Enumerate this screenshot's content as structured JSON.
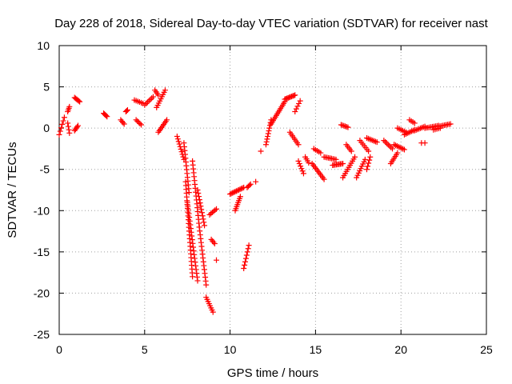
{
  "chart_data": {
    "type": "scatter",
    "title": "Day 228 of 2018, Sidereal Day-to-day VTEC variation (SDTVAR) for receiver nast",
    "xlabel": "GPS time / hours",
    "ylabel": "SDTVAR / TECUs",
    "xlim": [
      0,
      25
    ],
    "ylim": [
      -25,
      10
    ],
    "xticks": [
      "0",
      "5",
      "10",
      "15",
      "20",
      "25"
    ],
    "yticks": [
      "10",
      "5",
      "0",
      "-5",
      "-10",
      "-15",
      "-20",
      "-25"
    ],
    "grid": true,
    "marker": "+",
    "color": "#ff0000",
    "series": [
      {
        "name": "SDTVAR",
        "segments": [
          {
            "x": [
              0.0,
              0.3
            ],
            "y": [
              -0.8,
              1.3
            ],
            "n": 6
          },
          {
            "x": [
              0.5,
              0.6
            ],
            "y": [
              2.0,
              2.6
            ],
            "n": 4
          },
          {
            "x": [
              0.5,
              0.6
            ],
            "y": [
              0.6,
              -0.6
            ],
            "n": 4
          },
          {
            "x": [
              0.9,
              1.2
            ],
            "y": [
              3.7,
              3.2
            ],
            "n": 6
          },
          {
            "x": [
              0.9,
              1.1
            ],
            "y": [
              -0.3,
              0.3
            ],
            "n": 5
          },
          {
            "x": [
              2.6,
              2.8
            ],
            "y": [
              1.8,
              1.4
            ],
            "n": 5
          },
          {
            "x": [
              3.6,
              3.8
            ],
            "y": [
              1.0,
              0.5
            ],
            "n": 4
          },
          {
            "x": [
              3.9,
              4.0
            ],
            "y": [
              2.0,
              2.2
            ],
            "n": 3
          },
          {
            "x": [
              4.4,
              4.9
            ],
            "y": [
              3.4,
              3.0
            ],
            "n": 6
          },
          {
            "x": [
              4.5,
              4.8
            ],
            "y": [
              1.0,
              0.4
            ],
            "n": 5
          },
          {
            "x": [
              5.0,
              5.5
            ],
            "y": [
              2.8,
              3.8
            ],
            "n": 7
          },
          {
            "x": [
              5.6,
              5.8
            ],
            "y": [
              4.6,
              4.0
            ],
            "n": 4
          },
          {
            "x": [
              5.7,
              6.2
            ],
            "y": [
              2.5,
              4.6
            ],
            "n": 9
          },
          {
            "x": [
              5.8,
              6.3
            ],
            "y": [
              -0.5,
              1.0
            ],
            "n": 9
          },
          {
            "x": [
              6.9,
              7.3
            ],
            "y": [
              -1.0,
              -3.8
            ],
            "n": 10
          },
          {
            "x": [
              7.3,
              7.6
            ],
            "y": [
              -1.8,
              -7.8
            ],
            "n": 14
          },
          {
            "x": [
              7.4,
              7.8
            ],
            "y": [
              -6.5,
              -18.0
            ],
            "n": 26
          },
          {
            "x": [
              7.5,
              8.1
            ],
            "y": [
              -9.0,
              -18.5
            ],
            "n": 22
          },
          {
            "x": [
              7.8,
              8.2
            ],
            "y": [
              -4.0,
              -12.0
            ],
            "n": 18
          },
          {
            "x": [
              8.2,
              8.6
            ],
            "y": [
              -12.0,
              -19.0
            ],
            "n": 16
          },
          {
            "x": [
              8.1,
              8.5
            ],
            "y": [
              -7.5,
              -11.8
            ],
            "n": 12
          },
          {
            "x": [
              8.8,
              9.2
            ],
            "y": [
              -10.5,
              -9.8
            ],
            "n": 6
          },
          {
            "x": [
              8.6,
              9.0
            ],
            "y": [
              -20.5,
              -22.3
            ],
            "n": 8
          },
          {
            "x": [
              8.9,
              9.1
            ],
            "y": [
              -13.5,
              -14.0
            ],
            "n": 4
          },
          {
            "x": [
              9.2,
              9.3
            ],
            "y": [
              -16.0,
              -16.0
            ],
            "n": 1
          },
          {
            "x": [
              10.0,
              10.8
            ],
            "y": [
              -8.0,
              -7.2
            ],
            "n": 12
          },
          {
            "x": [
              10.3,
              10.6
            ],
            "y": [
              -10.0,
              -8.3
            ],
            "n": 8
          },
          {
            "x": [
              10.8,
              11.1
            ],
            "y": [
              -17.0,
              -14.2
            ],
            "n": 8
          },
          {
            "x": [
              11.0,
              11.2
            ],
            "y": [
              -7.2,
              -6.8
            ],
            "n": 4
          },
          {
            "x": [
              11.5,
              11.6
            ],
            "y": [
              -6.5,
              -6.5
            ],
            "n": 1
          },
          {
            "x": [
              11.8,
              11.9
            ],
            "y": [
              -2.8,
              -2.8
            ],
            "n": 1
          },
          {
            "x": [
              12.1,
              12.4
            ],
            "y": [
              -2.0,
              1.0
            ],
            "n": 10
          },
          {
            "x": [
              12.4,
              13.2
            ],
            "y": [
              0.5,
              3.2
            ],
            "n": 14
          },
          {
            "x": [
              13.2,
              13.8
            ],
            "y": [
              3.5,
              4.0
            ],
            "n": 10
          },
          {
            "x": [
              13.5,
              14.0
            ],
            "y": [
              -0.5,
              -2.0
            ],
            "n": 8
          },
          {
            "x": [
              13.8,
              14.1
            ],
            "y": [
              2.0,
              3.3
            ],
            "n": 5
          },
          {
            "x": [
              14.0,
              14.3
            ],
            "y": [
              -4.0,
              -5.5
            ],
            "n": 6
          },
          {
            "x": [
              14.4,
              14.6
            ],
            "y": [
              -3.5,
              -4.2
            ],
            "n": 4
          },
          {
            "x": [
              14.8,
              15.5
            ],
            "y": [
              -4.3,
              -6.2
            ],
            "n": 11
          },
          {
            "x": [
              14.9,
              15.3
            ],
            "y": [
              -2.5,
              -3.0
            ],
            "n": 5
          },
          {
            "x": [
              15.5,
              16.2
            ],
            "y": [
              -3.5,
              -3.8
            ],
            "n": 9
          },
          {
            "x": [
              16.0,
              16.6
            ],
            "y": [
              -4.5,
              -4.3
            ],
            "n": 9
          },
          {
            "x": [
              16.5,
              16.9
            ],
            "y": [
              0.4,
              0.1
            ],
            "n": 6
          },
          {
            "x": [
              16.6,
              17.3
            ],
            "y": [
              -6.0,
              -3.5
            ],
            "n": 11
          },
          {
            "x": [
              16.8,
              17.1
            ],
            "y": [
              -2.0,
              -2.8
            ],
            "n": 5
          },
          {
            "x": [
              17.4,
              17.9
            ],
            "y": [
              -6.0,
              -3.8
            ],
            "n": 9
          },
          {
            "x": [
              17.6,
              18.1
            ],
            "y": [
              -1.5,
              -2.8
            ],
            "n": 7
          },
          {
            "x": [
              18.0,
              18.6
            ],
            "y": [
              -1.2,
              -1.7
            ],
            "n": 8
          },
          {
            "x": [
              18.0,
              18.2
            ],
            "y": [
              -5.0,
              -3.5
            ],
            "n": 5
          },
          {
            "x": [
              19.0,
              19.5
            ],
            "y": [
              -1.5,
              -2.5
            ],
            "n": 7
          },
          {
            "x": [
              19.4,
              19.8
            ],
            "y": [
              -4.3,
              -3.0
            ],
            "n": 7
          },
          {
            "x": [
              19.6,
              20.2
            ],
            "y": [
              -2.0,
              -2.6
            ],
            "n": 8
          },
          {
            "x": [
              19.8,
              20.3
            ],
            "y": [
              0.0,
              -0.5
            ],
            "n": 6
          },
          {
            "x": [
              20.2,
              20.8
            ],
            "y": [
              -0.8,
              -0.2
            ],
            "n": 8
          },
          {
            "x": [
              20.5,
              20.8
            ],
            "y": [
              1.0,
              0.6
            ],
            "n": 4
          },
          {
            "x": [
              20.8,
              21.4
            ],
            "y": [
              -0.3,
              0.2
            ],
            "n": 8
          },
          {
            "x": [
              21.2,
              21.4
            ],
            "y": [
              -1.8,
              -1.8
            ],
            "n": 2
          },
          {
            "x": [
              21.4,
              22.2
            ],
            "y": [
              0.0,
              0.3
            ],
            "n": 10
          },
          {
            "x": [
              21.9,
              22.3
            ],
            "y": [
              -0.2,
              0.0
            ],
            "n": 5
          },
          {
            "x": [
              22.2,
              22.9
            ],
            "y": [
              0.2,
              0.5
            ],
            "n": 9
          }
        ]
      }
    ]
  }
}
